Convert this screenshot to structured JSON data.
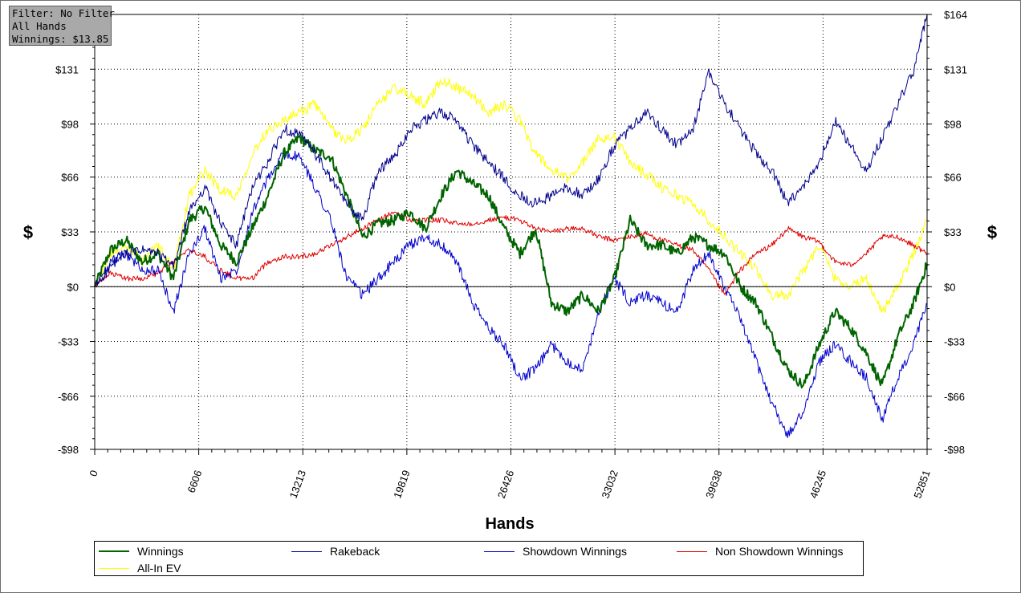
{
  "info_box": {
    "filter": "Filter: No Filter",
    "hands": "All Hands",
    "winnings": "Winnings: $13.85"
  },
  "chart_data": {
    "type": "line",
    "title": "",
    "xlabel": "Hands",
    "ylabel_left": "$",
    "ylabel_right": "$",
    "xlim": [
      0,
      52851
    ],
    "ylim": [
      -98,
      164
    ],
    "x_ticks": [
      0,
      6606,
      13213,
      19819,
      26426,
      33032,
      39638,
      46245,
      52851
    ],
    "y_ticks": [
      -98,
      -66,
      -33,
      0,
      33,
      66,
      98,
      131,
      164
    ],
    "y_tick_labels": [
      "-$98",
      "-$66",
      "-$33",
      "$0",
      "$33",
      "$66",
      "$98",
      "$131",
      "$164"
    ],
    "grid": true,
    "legend_position": "bottom",
    "x": [
      0,
      1000,
      2000,
      3000,
      4000,
      5000,
      6000,
      7000,
      8000,
      9000,
      10000,
      11000,
      12000,
      13000,
      14000,
      15000,
      16000,
      17000,
      18000,
      19000,
      20000,
      21000,
      22000,
      23000,
      24000,
      25000,
      26000,
      27000,
      28000,
      29000,
      30000,
      31000,
      32000,
      33000,
      34000,
      35000,
      36000,
      37000,
      38000,
      39000,
      40000,
      41000,
      42000,
      43000,
      44000,
      45000,
      46000,
      47000,
      48000,
      49000,
      50000,
      51000,
      52000,
      52851
    ],
    "series": [
      {
        "name": "Winnings",
        "color": "#006400",
        "width": 2,
        "values": [
          0,
          22,
          28,
          15,
          20,
          5,
          40,
          48,
          25,
          15,
          35,
          55,
          80,
          90,
          82,
          78,
          55,
          30,
          38,
          40,
          45,
          35,
          55,
          70,
          62,
          55,
          35,
          20,
          35,
          -10,
          -15,
          -5,
          -15,
          5,
          40,
          25,
          25,
          20,
          30,
          25,
          20,
          0,
          -10,
          -30,
          -50,
          -60,
          -35,
          -15,
          -25,
          -40,
          -60,
          -30,
          -10,
          13.85
        ]
      },
      {
        "name": "Rakeback",
        "color": "#00008b",
        "width": 1,
        "values": [
          0,
          12,
          20,
          22,
          20,
          12,
          45,
          60,
          38,
          25,
          60,
          75,
          95,
          92,
          80,
          65,
          50,
          40,
          70,
          78,
          95,
          100,
          105,
          100,
          85,
          75,
          65,
          55,
          50,
          55,
          60,
          55,
          65,
          85,
          95,
          105,
          95,
          85,
          95,
          130,
          110,
          95,
          80,
          70,
          50,
          60,
          75,
          100,
          85,
          70,
          90,
          110,
          130,
          164
        ]
      },
      {
        "name": "Showdown Winnings",
        "color": "#0000cd",
        "width": 1,
        "values": [
          0,
          15,
          20,
          10,
          10,
          -15,
          20,
          35,
          5,
          10,
          45,
          65,
          80,
          78,
          60,
          40,
          5,
          -5,
          5,
          15,
          25,
          30,
          25,
          15,
          -10,
          -25,
          -35,
          -55,
          -50,
          -35,
          -45,
          -50,
          -15,
          5,
          -10,
          -5,
          -10,
          -15,
          10,
          20,
          0,
          -20,
          -45,
          -70,
          -90,
          -75,
          -45,
          -35,
          -45,
          -55,
          -80,
          -55,
          -35,
          -10
        ]
      },
      {
        "name": "Non Showdown Winnings",
        "color": "#e00000",
        "width": 1,
        "values": [
          0,
          8,
          5,
          5,
          8,
          15,
          22,
          18,
          10,
          5,
          5,
          15,
          18,
          18,
          20,
          25,
          30,
          35,
          40,
          45,
          40,
          40,
          40,
          38,
          38,
          40,
          42,
          40,
          35,
          33,
          35,
          35,
          30,
          28,
          30,
          32,
          28,
          25,
          22,
          10,
          -5,
          10,
          20,
          25,
          35,
          30,
          27,
          15,
          13,
          20,
          30,
          30,
          25,
          20
        ]
      },
      {
        "name": "All-In EV",
        "color": "#ffff00",
        "width": 1,
        "values": [
          0,
          20,
          25,
          15,
          25,
          10,
          55,
          70,
          58,
          55,
          80,
          95,
          100,
          105,
          110,
          95,
          88,
          95,
          110,
          120,
          115,
          110,
          125,
          120,
          115,
          105,
          110,
          100,
          80,
          70,
          65,
          75,
          90,
          90,
          75,
          68,
          60,
          55,
          50,
          40,
          30,
          20,
          10,
          -5,
          -5,
          10,
          25,
          5,
          0,
          5,
          -15,
          0,
          20,
          40
        ]
      }
    ]
  }
}
